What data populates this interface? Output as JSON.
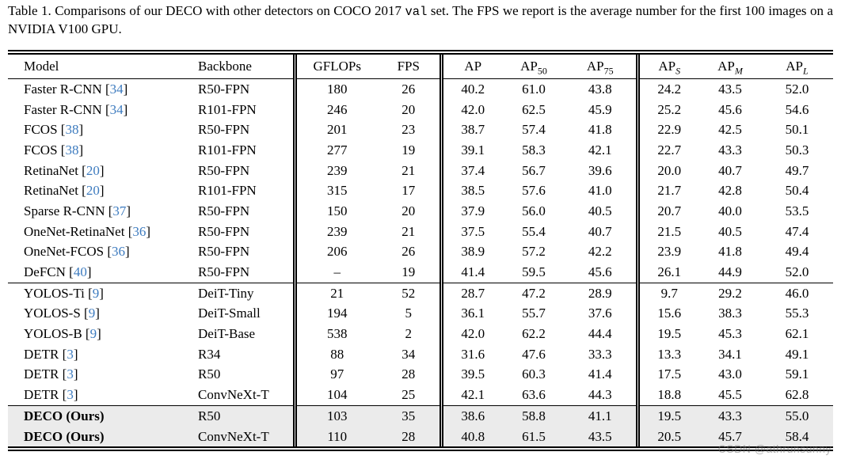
{
  "caption": {
    "before_code": "Table 1. Comparisons of our DECO with other detectors on COCO 2017 ",
    "code": "val",
    "after_code": " set. The FPS we report is the average number for the first 100 images on a NVIDIA V100 GPU."
  },
  "colors": {
    "citation": "#3d7bbf",
    "highlight_row": "#ebebeb"
  },
  "table": {
    "headers": [
      {
        "base": "Model",
        "sub": ""
      },
      {
        "base": "Backbone",
        "sub": ""
      },
      {
        "base": "GFLOPs",
        "sub": ""
      },
      {
        "base": "FPS",
        "sub": ""
      },
      {
        "base": "AP",
        "sub": ""
      },
      {
        "base": "AP",
        "sub": "50"
      },
      {
        "base": "AP",
        "sub": "75"
      },
      {
        "base": "AP",
        "sub": "S"
      },
      {
        "base": "AP",
        "sub": "M"
      },
      {
        "base": "AP",
        "sub": "L"
      }
    ],
    "rows": [
      {
        "model": "Faster R-CNN",
        "cite": "34",
        "backbone": "R50-FPN",
        "gflops": "180",
        "fps": "26",
        "ap": "40.2",
        "ap50": "61.0",
        "ap75": "43.8",
        "aps": "24.2",
        "apm": "43.5",
        "apl": "52.0",
        "ours": false,
        "section_end": false
      },
      {
        "model": "Faster R-CNN",
        "cite": "34",
        "backbone": "R101-FPN",
        "gflops": "246",
        "fps": "20",
        "ap": "42.0",
        "ap50": "62.5",
        "ap75": "45.9",
        "aps": "25.2",
        "apm": "45.6",
        "apl": "54.6",
        "ours": false,
        "section_end": false
      },
      {
        "model": "FCOS",
        "cite": "38",
        "backbone": "R50-FPN",
        "gflops": "201",
        "fps": "23",
        "ap": "38.7",
        "ap50": "57.4",
        "ap75": "41.8",
        "aps": "22.9",
        "apm": "42.5",
        "apl": "50.1",
        "ours": false,
        "section_end": false
      },
      {
        "model": "FCOS",
        "cite": "38",
        "backbone": "R101-FPN",
        "gflops": "277",
        "fps": "19",
        "ap": "39.1",
        "ap50": "58.3",
        "ap75": "42.1",
        "aps": "22.7",
        "apm": "43.3",
        "apl": "50.3",
        "ours": false,
        "section_end": false
      },
      {
        "model": "RetinaNet",
        "cite": "20",
        "backbone": "R50-FPN",
        "gflops": "239",
        "fps": "21",
        "ap": "37.4",
        "ap50": "56.7",
        "ap75": "39.6",
        "aps": "20.0",
        "apm": "40.7",
        "apl": "49.7",
        "ours": false,
        "section_end": false
      },
      {
        "model": "RetinaNet",
        "cite": "20",
        "backbone": "R101-FPN",
        "gflops": "315",
        "fps": "17",
        "ap": "38.5",
        "ap50": "57.6",
        "ap75": "41.0",
        "aps": "21.7",
        "apm": "42.8",
        "apl": "50.4",
        "ours": false,
        "section_end": false
      },
      {
        "model": "Sparse R-CNN",
        "cite": "37",
        "backbone": "R50-FPN",
        "gflops": "150",
        "fps": "20",
        "ap": "37.9",
        "ap50": "56.0",
        "ap75": "40.5",
        "aps": "20.7",
        "apm": "40.0",
        "apl": "53.5",
        "ours": false,
        "section_end": false
      },
      {
        "model": "OneNet-RetinaNet",
        "cite": "36",
        "backbone": "R50-FPN",
        "gflops": "239",
        "fps": "21",
        "ap": "37.5",
        "ap50": "55.4",
        "ap75": "40.7",
        "aps": "21.5",
        "apm": "40.5",
        "apl": "47.4",
        "ours": false,
        "section_end": false
      },
      {
        "model": "OneNet-FCOS",
        "cite": "36",
        "backbone": "R50-FPN",
        "gflops": "206",
        "fps": "26",
        "ap": "38.9",
        "ap50": "57.2",
        "ap75": "42.2",
        "aps": "23.9",
        "apm": "41.8",
        "apl": "49.4",
        "ours": false,
        "section_end": false
      },
      {
        "model": "DeFCN",
        "cite": "40",
        "backbone": "R50-FPN",
        "gflops": "–",
        "fps": "19",
        "ap": "41.4",
        "ap50": "59.5",
        "ap75": "45.6",
        "aps": "26.1",
        "apm": "44.9",
        "apl": "52.0",
        "ours": false,
        "section_end": true
      },
      {
        "model": "YOLOS-Ti",
        "cite": "9",
        "backbone": "DeiT-Tiny",
        "gflops": "21",
        "fps": "52",
        "ap": "28.7",
        "ap50": "47.2",
        "ap75": "28.9",
        "aps": "9.7",
        "apm": "29.2",
        "apl": "46.0",
        "ours": false,
        "section_end": false
      },
      {
        "model": "YOLOS-S",
        "cite": "9",
        "backbone": "DeiT-Small",
        "gflops": "194",
        "fps": "5",
        "ap": "36.1",
        "ap50": "55.7",
        "ap75": "37.6",
        "aps": "15.6",
        "apm": "38.3",
        "apl": "55.3",
        "ours": false,
        "section_end": false
      },
      {
        "model": "YOLOS-B",
        "cite": "9",
        "backbone": "DeiT-Base",
        "gflops": "538",
        "fps": "2",
        "ap": "42.0",
        "ap50": "62.2",
        "ap75": "44.4",
        "aps": "19.5",
        "apm": "45.3",
        "apl": "62.1",
        "ours": false,
        "section_end": false
      },
      {
        "model": "DETR",
        "cite": "3",
        "backbone": "R34",
        "gflops": "88",
        "fps": "34",
        "ap": "31.6",
        "ap50": "47.6",
        "ap75": "33.3",
        "aps": "13.3",
        "apm": "34.1",
        "apl": "49.1",
        "ours": false,
        "section_end": false
      },
      {
        "model": "DETR",
        "cite": "3",
        "backbone": "R50",
        "gflops": "97",
        "fps": "28",
        "ap": "39.5",
        "ap50": "60.3",
        "ap75": "41.4",
        "aps": "17.5",
        "apm": "43.0",
        "apl": "59.1",
        "ours": false,
        "section_end": false
      },
      {
        "model": "DETR",
        "cite": "3",
        "backbone": "ConvNeXt-T",
        "gflops": "104",
        "fps": "25",
        "ap": "42.1",
        "ap50": "63.6",
        "ap75": "44.3",
        "aps": "18.8",
        "apm": "45.5",
        "apl": "62.8",
        "ours": false,
        "section_end": true
      },
      {
        "model": "DECO (Ours)",
        "cite": "",
        "backbone": "R50",
        "gflops": "103",
        "fps": "35",
        "ap": "38.6",
        "ap50": "58.8",
        "ap75": "41.1",
        "aps": "19.5",
        "apm": "43.3",
        "apl": "55.0",
        "ours": true,
        "section_end": false
      },
      {
        "model": "DECO (Ours)",
        "cite": "",
        "backbone": "ConvNeXt-T",
        "gflops": "110",
        "fps": "28",
        "ap": "40.8",
        "ap50": "61.5",
        "ap75": "43.5",
        "aps": "20.5",
        "apm": "45.7",
        "apl": "58.4",
        "ours": true,
        "section_end": false
      }
    ]
  },
  "watermark": "CSDN @athrunsunny"
}
